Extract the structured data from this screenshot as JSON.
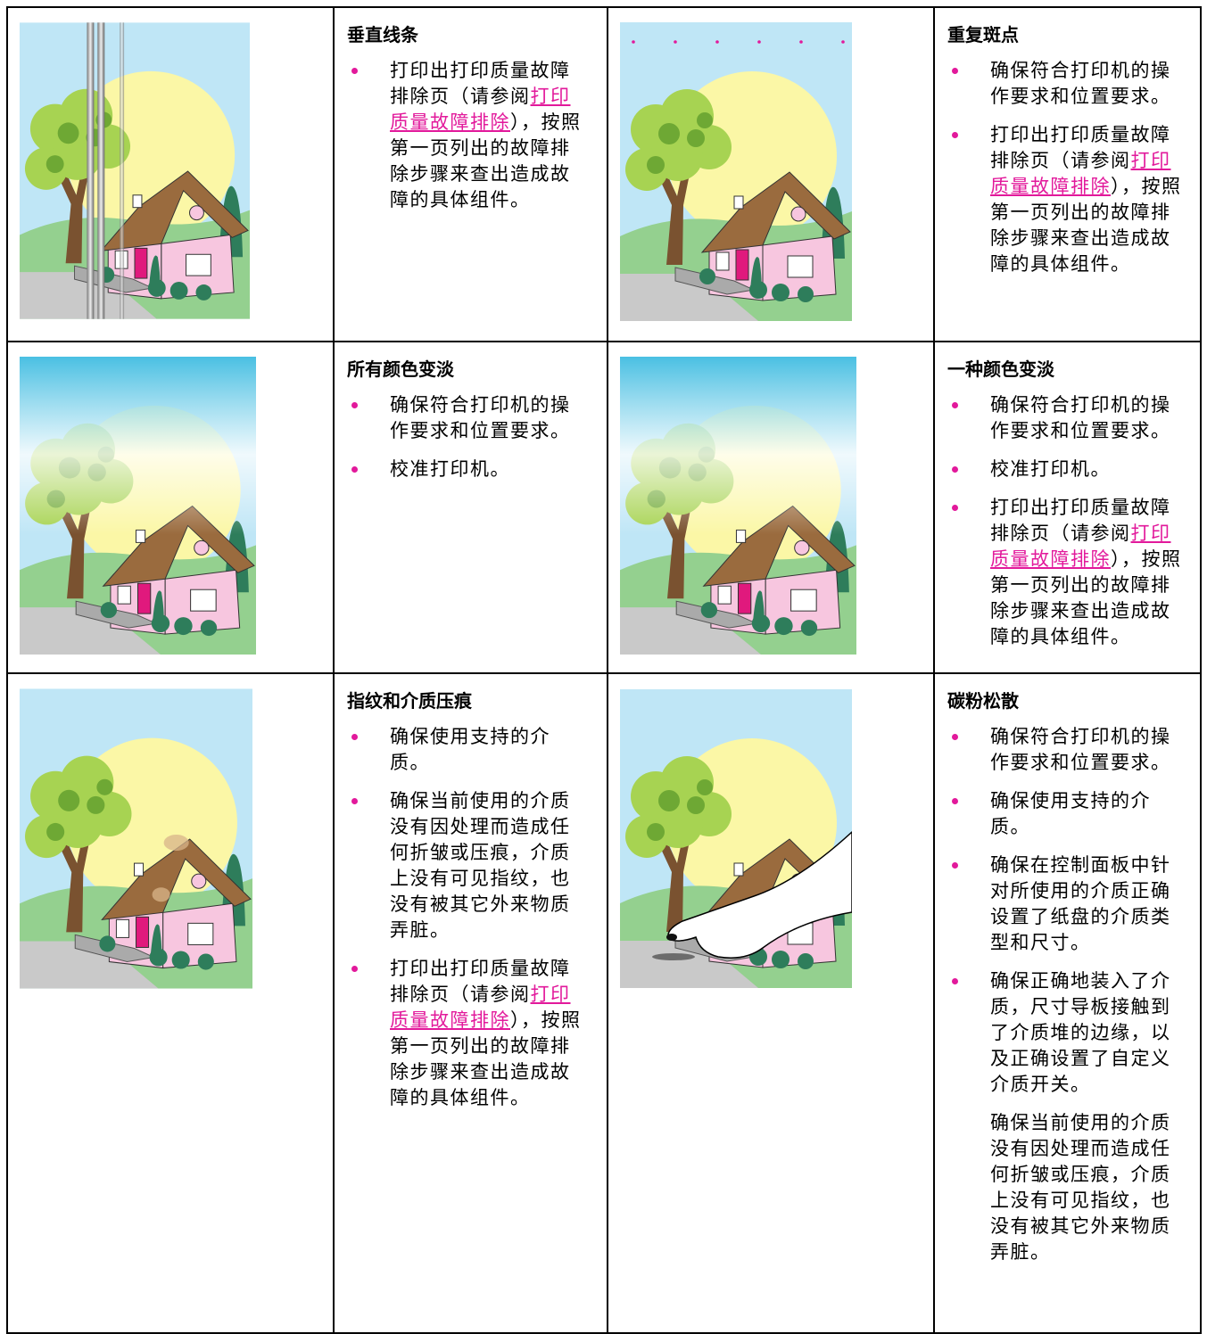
{
  "rows": [
    {
      "cells": [
        {
          "title": "垂直线条",
          "items": [
            {
              "text": "打印出打印质量故障排除页（请参阅",
              "link": "打印质量故障排除",
              "rest": "），按照第一页列出的故障排除步骤来查出造成故障的具体组件。"
            }
          ]
        },
        {
          "title": "重复斑点",
          "items": [
            "确保符合打印机的操作要求和位置要求。",
            {
              "text": "打印出打印质量故障排除页（请参阅",
              "link": "打印质量故障排除",
              "rest": "），按照第一页列出的故障排除步骤来查出造成故障的具体组件。"
            }
          ]
        }
      ]
    },
    {
      "cells": [
        {
          "title": "所有颜色变淡",
          "items": [
            "确保符合打印机的操作要求和位置要求。",
            "校准打印机。"
          ]
        },
        {
          "title": "一种颜色变淡",
          "items": [
            "确保符合打印机的操作要求和位置要求。",
            "校准打印机。",
            {
              "text": "打印出打印质量故障排除页（请参阅",
              "link": "打印质量故障排除",
              "rest": "），按照第一页列出的故障排除步骤来查出造成故障的具体组件。"
            }
          ]
        }
      ]
    },
    {
      "cells": [
        {
          "title": "指纹和介质压痕",
          "items": [
            "确保使用支持的介质。",
            "确保当前使用的介质没有因处理而造成任何折皱或压痕，介质上没有可见指纹，也没有被其它外来物质弄脏。",
            {
              "text": "打印出打印质量故障排除页（请参阅",
              "link": "打印质量故障排除",
              "rest": "），按照第一页列出的故障排除步骤来查出造成故障的具体组件。"
            }
          ]
        },
        {
          "title": "碳粉松散",
          "items": [
            "确保符合打印机的操作要求和位置要求。",
            "确保使用支持的介质。",
            "确保在控制面板中针对所使用的介质正确设置了纸盘的介质类型和尺寸。",
            "确保正确地装入了介质，尺寸导板接触到了介质堆的边缘，以及正确设置了自定义介质开关。"
          ],
          "note": "确保当前使用的介质没有因处理而造成任何折皱或压痕，介质上没有可见指纹，也没有被其它外来物质弄脏。"
        }
      ]
    }
  ]
}
